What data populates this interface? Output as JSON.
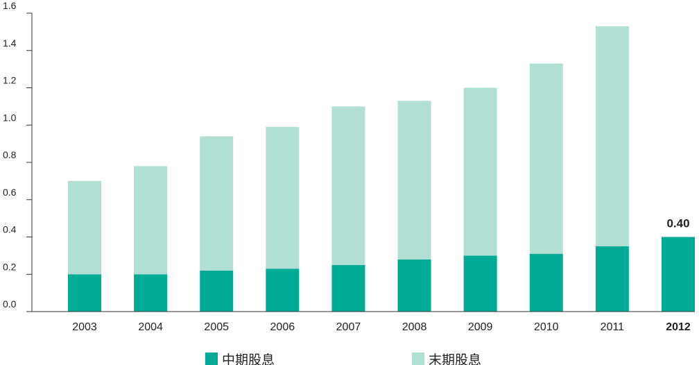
{
  "chart_data": {
    "type": "bar",
    "stacked": true,
    "categories": [
      "2003",
      "2004",
      "2005",
      "2006",
      "2007",
      "2008",
      "2009",
      "2010",
      "2011",
      "2012"
    ],
    "highlight_category": "2012",
    "series": [
      {
        "name": "中期股息",
        "color": "#00ab96",
        "values": [
          0.2,
          0.2,
          0.22,
          0.23,
          0.25,
          0.28,
          0.3,
          0.31,
          0.35,
          0.4
        ]
      },
      {
        "name": "末期股息",
        "color": "#b2dfd4",
        "values": [
          0.5,
          0.58,
          0.72,
          0.76,
          0.85,
          0.85,
          0.9,
          1.02,
          1.18,
          null
        ]
      }
    ],
    "data_labels": [
      {
        "category": "2012",
        "text": "0.40"
      }
    ],
    "yticks": [
      "0.0",
      "0.2",
      "0.4",
      "0.6",
      "0.8",
      "1.0",
      "1.2",
      "1.4",
      "1.6"
    ],
    "ylim": [
      0,
      1.6
    ],
    "title": "",
    "xlabel": "",
    "ylabel": "",
    "grid": false,
    "legend_position": "bottom"
  }
}
